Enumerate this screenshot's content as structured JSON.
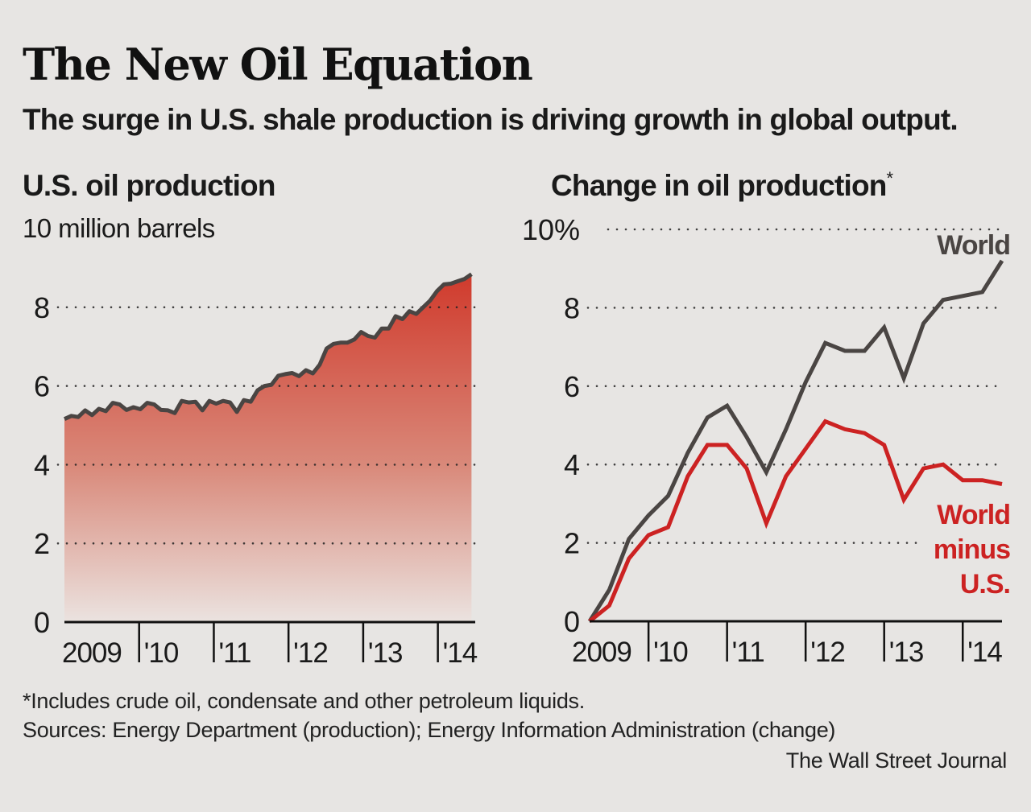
{
  "title": "The New Oil Equation",
  "subtitle": "The surge in U.S. shale production is driving growth in global output.",
  "footnote": "*Includes crude oil, condensate and other petroleum liquids.",
  "sources": "Sources: Energy Department (production); Energy Information Administration (change)",
  "credit": "The Wall Street Journal",
  "colors": {
    "background": "#e7e5e3",
    "line_dark": "#4a4543",
    "line_red": "#cc2222",
    "fill_top": "#d03a2c",
    "fill_bottom": "#ebe3e0"
  },
  "chart_data": [
    {
      "type": "area",
      "title": "U.S. oil production",
      "ylabel": "",
      "unit_label": "10 million barrels",
      "ylim": [
        0,
        10
      ],
      "xlim": [
        2009,
        2014.5
      ],
      "yticks": [
        "0",
        "2",
        "4",
        "6",
        "8"
      ],
      "xticks": [
        {
          "at": 2009,
          "label": "2009"
        },
        {
          "at": 2010,
          "label": "'10"
        },
        {
          "at": 2011,
          "label": "'11"
        },
        {
          "at": 2012,
          "label": "'12"
        },
        {
          "at": 2013,
          "label": "'13"
        },
        {
          "at": 2014,
          "label": "'14"
        }
      ],
      "grid": true,
      "x_range": [
        2009.0,
        2014.45
      ],
      "values": [
        5.16,
        5.24,
        5.21,
        5.38,
        5.26,
        5.42,
        5.36,
        5.57,
        5.53,
        5.39,
        5.46,
        5.41,
        5.57,
        5.53,
        5.39,
        5.38,
        5.31,
        5.62,
        5.58,
        5.6,
        5.38,
        5.62,
        5.55,
        5.62,
        5.58,
        5.34,
        5.64,
        5.6,
        5.89,
        6.0,
        6.03,
        6.26,
        6.3,
        6.33,
        6.25,
        6.4,
        6.32,
        6.54,
        6.95,
        7.07,
        7.1,
        7.1,
        7.18,
        7.37,
        7.27,
        7.23,
        7.46,
        7.46,
        7.77,
        7.7,
        7.9,
        7.83,
        8.0,
        8.17,
        8.41,
        8.58,
        8.6,
        8.66,
        8.72,
        8.84
      ]
    },
    {
      "type": "line",
      "title": "Change in oil production",
      "title_mark": "*",
      "ylim": [
        0,
        10
      ],
      "xlim": [
        2009.25,
        2014.5
      ],
      "yticks": [
        "0",
        "2",
        "4",
        "6",
        "8",
        "10%"
      ],
      "xticks": [
        {
          "at": 2009.25,
          "label": "2009"
        },
        {
          "at": 2010,
          "label": "'10"
        },
        {
          "at": 2011,
          "label": "'11"
        },
        {
          "at": 2012,
          "label": "'12"
        },
        {
          "at": 2013,
          "label": "'13"
        },
        {
          "at": 2014,
          "label": "'14"
        }
      ],
      "grid": true,
      "x": [
        2009.25,
        2009.5,
        2009.75,
        2010.0,
        2010.25,
        2010.5,
        2010.75,
        2011.0,
        2011.25,
        2011.5,
        2011.75,
        2012.0,
        2012.25,
        2012.5,
        2012.75,
        2013.0,
        2013.25,
        2013.5,
        2013.75,
        2014.0,
        2014.25,
        2014.5
      ],
      "series": [
        {
          "name": "World",
          "color": "#4a4543",
          "values": [
            0,
            0.8,
            2.1,
            2.7,
            3.2,
            4.3,
            5.2,
            5.5,
            4.7,
            3.8,
            4.9,
            6.1,
            7.1,
            6.9,
            6.9,
            7.5,
            6.2,
            7.6,
            8.2,
            8.3,
            8.4,
            9.2
          ]
        },
        {
          "name": "World minus U.S.",
          "name_lines": [
            "World",
            "minus",
            "U.S."
          ],
          "color": "#cc2222",
          "values": [
            0,
            0.4,
            1.6,
            2.2,
            2.4,
            3.7,
            4.5,
            4.5,
            3.9,
            2.5,
            3.7,
            4.4,
            5.1,
            4.9,
            4.8,
            4.5,
            3.1,
            3.9,
            4.0,
            3.6,
            3.6,
            3.5
          ]
        }
      ]
    }
  ]
}
